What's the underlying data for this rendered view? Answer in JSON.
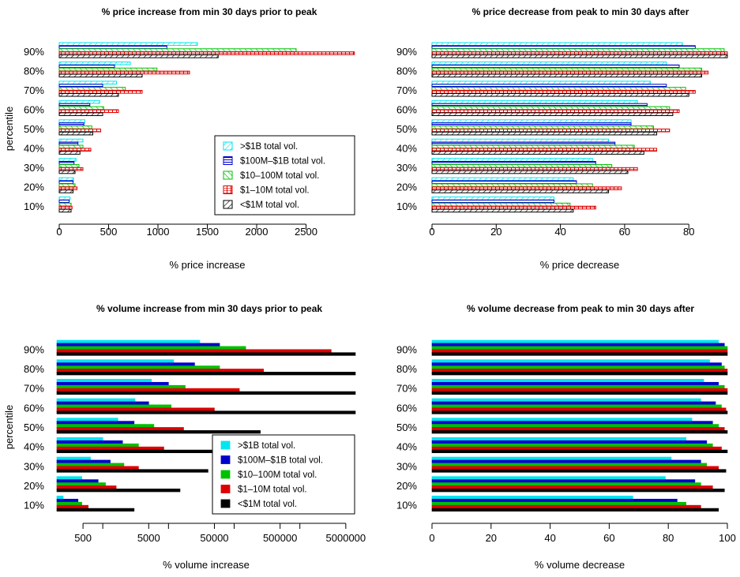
{
  "colors": {
    "gt1B": "#00e5ee",
    "m100to1B": "#0000cd",
    "m10to100": "#00c000",
    "m1to10": "#dd0000",
    "lt1M": "#000000"
  },
  "chart_data": [
    {
      "type": "bar",
      "orientation": "horizontal",
      "fill": "hatched",
      "title": "% price increase from min 30 days prior to peak",
      "xlabel": "% price increase",
      "ylabel": "percentile",
      "xlim": [
        0,
        3000
      ],
      "x_ticks": [
        "0",
        "500",
        "1000",
        "1500",
        "2000",
        "2500"
      ],
      "categories": [
        "10%",
        "20%",
        "30%",
        "40%",
        "50%",
        "60%",
        "70%",
        "80%",
        "90%"
      ],
      "legend_position": "bottom-right",
      "series": [
        {
          "name": ">$1B total vol.",
          "color": "#00e5ee",
          "hatch": "diag",
          "values": [
            110,
            145,
            170,
            240,
            260,
            410,
            580,
            720,
            1400
          ]
        },
        {
          "name": "$100M–$1B total vol.",
          "color": "#0000cd",
          "hatch": "horiz",
          "values": [
            100,
            140,
            150,
            190,
            250,
            310,
            440,
            560,
            1090
          ]
        },
        {
          "name": "$10–100M total vol.",
          "color": "#00c000",
          "hatch": "anti",
          "values": [
            120,
            160,
            200,
            240,
            330,
            450,
            670,
            990,
            2400
          ]
        },
        {
          "name": "$1–10M total vol.",
          "color": "#dd0000",
          "hatch": "grid",
          "values": [
            130,
            180,
            240,
            320,
            420,
            600,
            840,
            1320,
            2990
          ]
        },
        {
          "name": "<$1M total vol.",
          "color": "#000000",
          "hatch": "diag",
          "values": [
            120,
            140,
            160,
            210,
            340,
            440,
            600,
            840,
            1610
          ]
        }
      ]
    },
    {
      "type": "bar",
      "orientation": "horizontal",
      "fill": "hatched",
      "title": "% price decrease from peak to min 30 days after",
      "xlabel": "% price decrease",
      "ylabel": "",
      "xlim": [
        0,
        92
      ],
      "x_ticks": [
        "0",
        "20",
        "40",
        "60",
        "80"
      ],
      "categories": [
        "10%",
        "20%",
        "30%",
        "40%",
        "50%",
        "60%",
        "70%",
        "80%",
        "90%"
      ],
      "series": [
        {
          "name": ">$1B total vol.",
          "color": "#00e5ee",
          "hatch": "diag",
          "values": [
            38,
            44,
            50,
            55,
            62,
            64,
            68,
            73,
            78
          ]
        },
        {
          "name": "$100M–$1B total vol.",
          "color": "#0000cd",
          "hatch": "horiz",
          "values": [
            38,
            45,
            51,
            57,
            62,
            67,
            73,
            77,
            82
          ]
        },
        {
          "name": "$10–100M total vol.",
          "color": "#00c000",
          "hatch": "anti",
          "values": [
            43,
            50,
            56,
            63,
            69,
            74,
            79,
            84,
            91
          ]
        },
        {
          "name": "$1–10M total vol.",
          "color": "#dd0000",
          "hatch": "grid",
          "values": [
            51,
            59,
            64,
            70,
            74,
            77,
            82,
            86,
            92
          ]
        },
        {
          "name": "<$1M total vol.",
          "color": "#000000",
          "hatch": "diag",
          "values": [
            44,
            55,
            61,
            66,
            70,
            75,
            80,
            84,
            92
          ]
        }
      ]
    },
    {
      "type": "bar",
      "orientation": "horizontal",
      "fill": "solid",
      "title": "% volume increase from min 30 days prior to peak",
      "xlabel": "% volume increase",
      "ylabel": "percentile",
      "xscale": "log",
      "xlim": [
        200,
        7000000
      ],
      "x_ticks": [
        "500",
        "5000",
        "50000",
        "500000",
        "5000000"
      ],
      "categories": [
        "10%",
        "20%",
        "30%",
        "40%",
        "50%",
        "60%",
        "70%",
        "80%",
        "90%"
      ],
      "legend_position": "bottom-right",
      "series": [
        {
          "name": ">$1B total vol.",
          "color": "#00e5ee",
          "values": [
            250,
            480,
            650,
            1000,
            1700,
            3100,
            5500,
            12000,
            30000
          ]
        },
        {
          "name": "$100M–$1B total vol.",
          "color": "#0000cd",
          "values": [
            420,
            850,
            1300,
            2000,
            3000,
            5000,
            10000,
            25000,
            60000
          ]
        },
        {
          "name": "$10–100M total vol.",
          "color": "#00c000",
          "values": [
            480,
            1100,
            2100,
            3500,
            6000,
            11000,
            18000,
            60000,
            150000
          ]
        },
        {
          "name": "$1–10M total vol.",
          "color": "#dd0000",
          "values": [
            600,
            1600,
            3500,
            8500,
            17000,
            50000,
            120000,
            280000,
            3000000
          ]
        },
        {
          "name": "<$1M total vol.",
          "color": "#000000",
          "values": [
            3000,
            15000,
            40000,
            60000,
            250000,
            7000000,
            7000000,
            7000000,
            7000000
          ]
        }
      ]
    },
    {
      "type": "bar",
      "orientation": "horizontal",
      "fill": "solid",
      "title": "% volume decrease from peak to min 30 days after",
      "xlabel": "% volume decrease",
      "ylabel": "",
      "xlim": [
        0,
        100
      ],
      "x_ticks": [
        "0",
        "20",
        "40",
        "60",
        "80",
        "100"
      ],
      "categories": [
        "10%",
        "20%",
        "30%",
        "40%",
        "50%",
        "60%",
        "70%",
        "80%",
        "90%"
      ],
      "series": [
        {
          "name": ">$1B total vol.",
          "color": "#00e5ee",
          "values": [
            68,
            79,
            81,
            86,
            88,
            91,
            92,
            94,
            97
          ]
        },
        {
          "name": "$100M–$1B total vol.",
          "color": "#0000cd",
          "values": [
            83,
            89,
            91,
            93,
            95,
            96,
            97,
            98,
            99
          ]
        },
        {
          "name": "$10–100M total vol.",
          "color": "#00c000",
          "values": [
            86,
            91,
            93,
            95,
            97,
            98,
            99,
            99,
            100
          ]
        },
        {
          "name": "$1–10M total vol.",
          "color": "#dd0000",
          "values": [
            91,
            95,
            97,
            98,
            99,
            99.5,
            100,
            100,
            100
          ]
        },
        {
          "name": "<$1M total vol.",
          "color": "#000000",
          "values": [
            97,
            99,
            99.5,
            100,
            100,
            100,
            100,
            100,
            100
          ]
        }
      ]
    }
  ]
}
